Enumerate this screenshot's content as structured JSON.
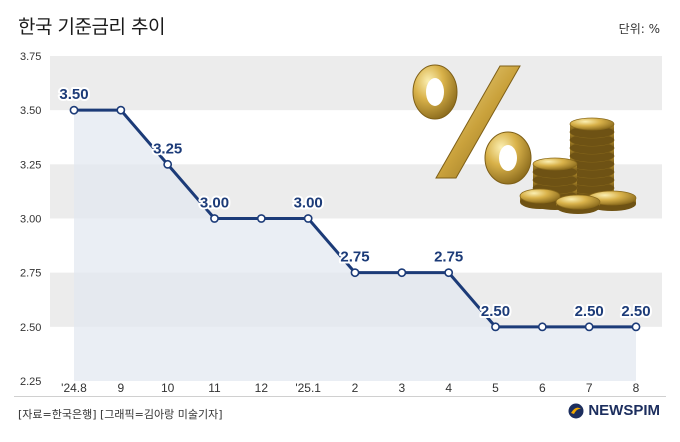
{
  "header": {
    "title": "한국 기준금리 추이",
    "unit": "단위: %"
  },
  "footer": {
    "source": "[자료=한국은행] [그래픽=김아랑 미술기자]",
    "brand": "NEWSPIM"
  },
  "decoration": {
    "illustration": "gold-percent-sign-and-coins",
    "line_color": "#1c3b78",
    "area_color": "#e3e8f0",
    "band_color": "#ececec"
  },
  "chart_data": {
    "type": "line",
    "title": "한국 기준금리 추이",
    "xlabel": "",
    "ylabel": "",
    "unit": "%",
    "categories": [
      "'24.8",
      "9",
      "10",
      "11",
      "12",
      "'25.1",
      "2",
      "3",
      "4",
      "5",
      "6",
      "7",
      "8"
    ],
    "series": [
      {
        "values": [
          3.5,
          3.5,
          3.25,
          3.0,
          3.0,
          3.0,
          2.75,
          2.75,
          2.75,
          2.5,
          2.5,
          2.5,
          2.5
        ]
      }
    ],
    "data_labels": [
      {
        "index": 0,
        "text": "3.50"
      },
      {
        "index": 2,
        "text": "3.25"
      },
      {
        "index": 3,
        "text": "3.00"
      },
      {
        "index": 5,
        "text": "3.00"
      },
      {
        "index": 6,
        "text": "2.75"
      },
      {
        "index": 8,
        "text": "2.75"
      },
      {
        "index": 9,
        "text": "2.50"
      },
      {
        "index": 11,
        "text": "2.50"
      },
      {
        "index": 12,
        "text": "2.50"
      }
    ],
    "y_ticks": [
      "3.75",
      "3.50",
      "3.25",
      "3.00",
      "2.75",
      "2.50",
      "2.25"
    ],
    "ylim": [
      2.25,
      3.75
    ],
    "grid": "alternating horizontal bands",
    "legend": "none"
  }
}
